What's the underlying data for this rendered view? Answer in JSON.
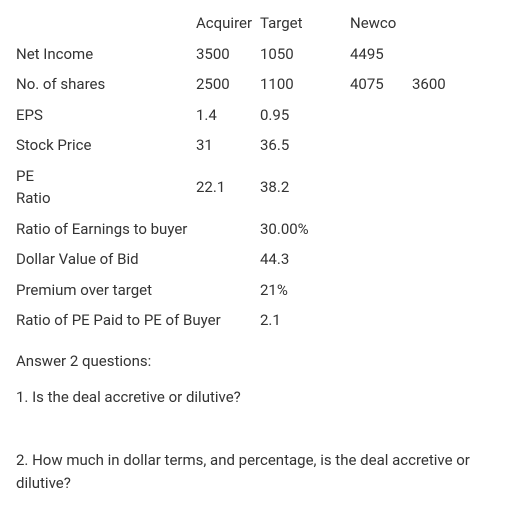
{
  "headers": {
    "acquirer": "Acquirer",
    "target": "Target",
    "newco": "Newco"
  },
  "rows_top": [
    {
      "label": "Net Income",
      "acq": "3500",
      "tgt": "1050",
      "n1": "4495",
      "n2": ""
    },
    {
      "label": "No. of shares",
      "acq": "2500",
      "tgt": "1100",
      "n1": "4075",
      "n2": "3600"
    },
    {
      "label": "EPS",
      "acq": "1.4",
      "tgt": "0.95",
      "n1": "",
      "n2": ""
    },
    {
      "label": "Stock Price",
      "acq": "31",
      "tgt": "36.5",
      "n1": "",
      "n2": ""
    }
  ],
  "pe_row": {
    "label1": "PE",
    "label2": "Ratio",
    "acq": "22.1",
    "tgt": "38.2"
  },
  "rows_bottom": [
    {
      "label": "Ratio of Earnings to buyer",
      "val": "30.00%"
    },
    {
      "label": "Dollar Value of Bid",
      "val": "44.3"
    },
    {
      "label": "Premium over target",
      "val": "21%"
    },
    {
      "label": "Ratio of PE Paid to PE of Buyer",
      "val": "2.1"
    }
  ],
  "questions": {
    "heading": "Answer 2 questions:",
    "q1": "1. Is the deal accretive or dilutive?",
    "q2": "2.  How much in dollar terms, and percentage, is the deal accretive or dilutive?"
  },
  "style": {
    "font_size_pt": 15,
    "text_color": "#333333",
    "background_color": "#ffffff"
  }
}
